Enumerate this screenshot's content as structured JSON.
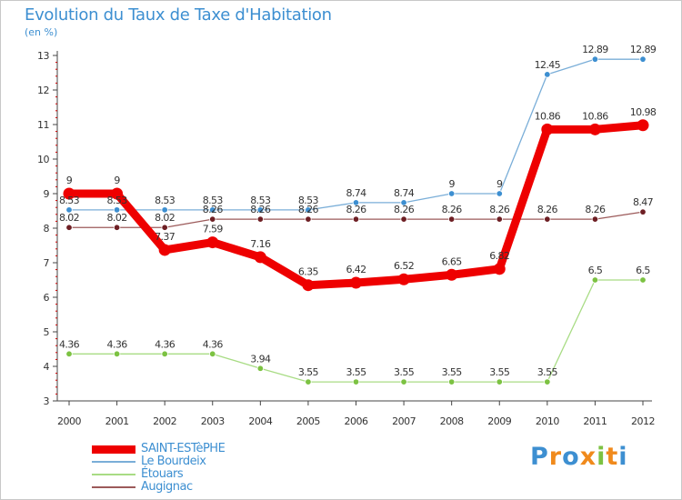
{
  "title": "Evolution du Taux de Taxe d'Habitation",
  "unit_label": "(en %)",
  "logo": {
    "text": "Proxiti",
    "letters": [
      "P",
      "r",
      "o",
      "x",
      "i",
      "t",
      "i"
    ],
    "colors": [
      "#3d8fd1",
      "#f08a1c",
      "#3d8fd1",
      "#f08a1c",
      "#7cc242",
      "#f08a1c",
      "#3d8fd1"
    ]
  },
  "chart_data": {
    "type": "line",
    "categories": [
      "2000",
      "2001",
      "2002",
      "2003",
      "2004",
      "2005",
      "2006",
      "2007",
      "2008",
      "2009",
      "2010",
      "2011",
      "2012"
    ],
    "ylim": [
      3,
      13
    ],
    "yticks": [
      "3",
      "4",
      "5",
      "6",
      "7",
      "8",
      "9",
      "10",
      "11",
      "12",
      "13"
    ],
    "grid": false,
    "legend_position": "bottom-left",
    "series": [
      {
        "name": "SAINT-ESTèPHE",
        "color": "#ee0000",
        "width": 9,
        "values": [
          9,
          9,
          7.37,
          7.59,
          7.16,
          6.35,
          6.42,
          6.52,
          6.65,
          6.82,
          10.86,
          10.86,
          10.98
        ],
        "labels": [
          "9",
          "9",
          "7.37",
          "7.59",
          "7.16",
          "6.35",
          "6.42",
          "6.52",
          "6.65",
          "6.82",
          "10.86",
          "10.86",
          "10.98"
        ]
      },
      {
        "name": "Le Bourdeix",
        "color": "#7aaed8",
        "marker": "#3d8fd1",
        "width": 1.3,
        "values": [
          8.53,
          8.53,
          8.53,
          8.53,
          8.53,
          8.53,
          8.74,
          8.74,
          9,
          9,
          12.45,
          12.89,
          12.89
        ],
        "labels": [
          "8.53",
          "8.53",
          "8.53",
          "8.53",
          "8.53",
          "8.53",
          "8.74",
          "8.74",
          "9",
          "9",
          "12.45",
          "12.89",
          "12.89"
        ]
      },
      {
        "name": "Étouars",
        "color": "#a8dc84",
        "marker": "#7cc242",
        "width": 1.3,
        "values": [
          4.36,
          4.36,
          4.36,
          4.36,
          3.94,
          3.55,
          3.55,
          3.55,
          3.55,
          3.55,
          3.55,
          6.5,
          6.5
        ],
        "labels": [
          "4.36",
          "4.36",
          "4.36",
          "4.36",
          "3.94",
          "3.55",
          "3.55",
          "3.55",
          "3.55",
          "3.55",
          "3.55",
          "6.5",
          "6.5"
        ]
      },
      {
        "name": "Augignac",
        "color": "#9c5a5a",
        "marker": "#6e1f24",
        "width": 1.3,
        "values": [
          8.02,
          8.02,
          8.02,
          8.26,
          8.26,
          8.26,
          8.26,
          8.26,
          8.26,
          8.26,
          8.26,
          8.26,
          8.47
        ],
        "labels": [
          "8.02",
          "8.02",
          "8.02",
          "8.26",
          "8.26",
          "8.26",
          "8.26",
          "8.26",
          "8.26",
          "8.26",
          "8.26",
          "8.26",
          "8.47"
        ]
      }
    ]
  }
}
